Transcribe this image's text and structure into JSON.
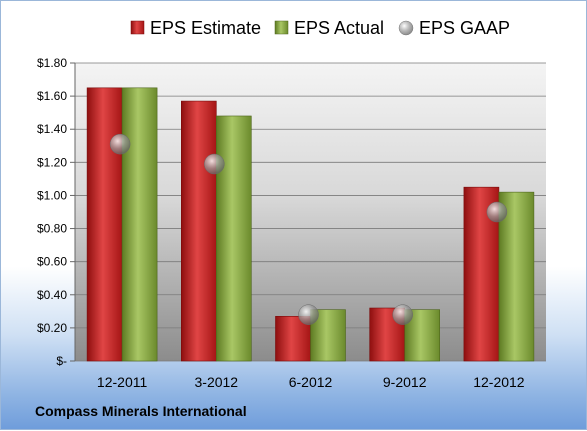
{
  "chart_data": {
    "type": "bar",
    "title": "",
    "xlabel": "",
    "ylabel": "",
    "categories": [
      "12-2011",
      "3-2012",
      "6-2012",
      "9-2012",
      "12-2012"
    ],
    "series": [
      {
        "name": "EPS Estimate",
        "kind": "bar",
        "color": "#c62828",
        "values": [
          1.65,
          1.57,
          0.27,
          0.32,
          1.05
        ]
      },
      {
        "name": "EPS Actual",
        "kind": "bar",
        "color": "#8aab3e",
        "values": [
          1.65,
          1.48,
          0.31,
          0.31,
          1.02
        ]
      },
      {
        "name": "EPS GAAP",
        "kind": "marker",
        "color": "#a8a8a8",
        "values": [
          1.31,
          1.19,
          0.28,
          0.28,
          0.9
        ]
      }
    ],
    "ylim": [
      0,
      1.8
    ],
    "yticks": [
      0,
      0.2,
      0.4,
      0.6,
      0.8,
      1.0,
      1.2,
      1.4,
      1.6,
      1.8
    ],
    "ytick_labels": [
      "$-",
      "$0.20",
      "$0.40",
      "$0.60",
      "$0.80",
      "$1.00",
      "$1.20",
      "$1.40",
      "$1.60",
      "$1.80"
    ],
    "grid": true,
    "legend_position": "top-center"
  },
  "footer": {
    "company": "Compass Minerals International"
  }
}
